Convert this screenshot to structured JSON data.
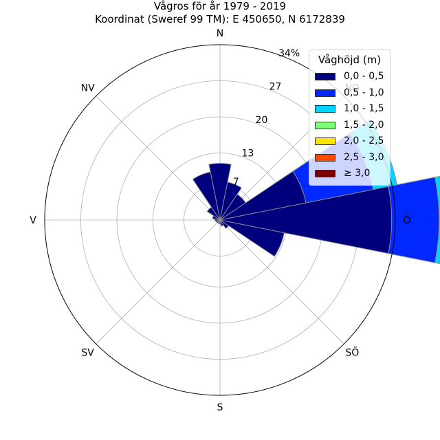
{
  "title_line1": "Vågros för år 1979 - 2019",
  "title_line2": "Koordinat (Sweref 99 TM): E 450650, N 6172839",
  "chart_data": {
    "type": "bar",
    "projection": "polar",
    "unit": "%",
    "directions": [
      "N",
      "NO",
      "Ö",
      "SÖ",
      "S",
      "SV",
      "V",
      "NV"
    ],
    "radial_ticks": [
      "7",
      "13",
      "20",
      "27",
      "34%"
    ],
    "radial_max": 34,
    "grid": true,
    "legend_title": "Våghöjd (m)",
    "legend_position": "top-right",
    "series": [
      {
        "name": "0,0 - 0,5",
        "color": "#00007f"
      },
      {
        "name": "0,5 - 1,0",
        "color": "#0028ff"
      },
      {
        "name": "1,0 - 1,5",
        "color": "#00d4ff"
      },
      {
        "name": "1,5 - 2,0",
        "color": "#7dff7a"
      },
      {
        "name": "2,0 - 2,5",
        "color": "#ffe500"
      },
      {
        "name": "2,5 - 3,0",
        "color": "#ff4800"
      },
      {
        "name": "≥ 3,0",
        "color": "#7f0000"
      }
    ],
    "sectors": [
      {
        "direction_deg": 0,
        "stacks": [
          11.0
        ]
      },
      {
        "direction_deg": 22.5,
        "stacks": [
          7.5
        ]
      },
      {
        "direction_deg": 45,
        "stacks": [
          6.0
        ]
      },
      {
        "direction_deg": 67.5,
        "stacks": [
          17.0,
          13.3,
          4.7
        ]
      },
      {
        "direction_deg": 90,
        "stacks": [
          33.3,
          9.2,
          0.9
        ]
      },
      {
        "direction_deg": 112.5,
        "stacks": [
          12.7
        ]
      },
      {
        "direction_deg": 135,
        "stacks": [
          2.0
        ]
      },
      {
        "direction_deg": 157.5,
        "stacks": [
          1.2
        ]
      },
      {
        "direction_deg": 180,
        "stacks": [
          0.8
        ]
      },
      {
        "direction_deg": 202.5,
        "stacks": [
          0.7
        ]
      },
      {
        "direction_deg": 225,
        "stacks": [
          0.7
        ]
      },
      {
        "direction_deg": 247.5,
        "stacks": [
          0.8
        ]
      },
      {
        "direction_deg": 270,
        "stacks": [
          1.0
        ]
      },
      {
        "direction_deg": 292.5,
        "stacks": [
          1.5
        ]
      },
      {
        "direction_deg": 315,
        "stacks": [
          3.0
        ]
      },
      {
        "direction_deg": 337.5,
        "stacks": [
          9.5
        ]
      }
    ]
  }
}
